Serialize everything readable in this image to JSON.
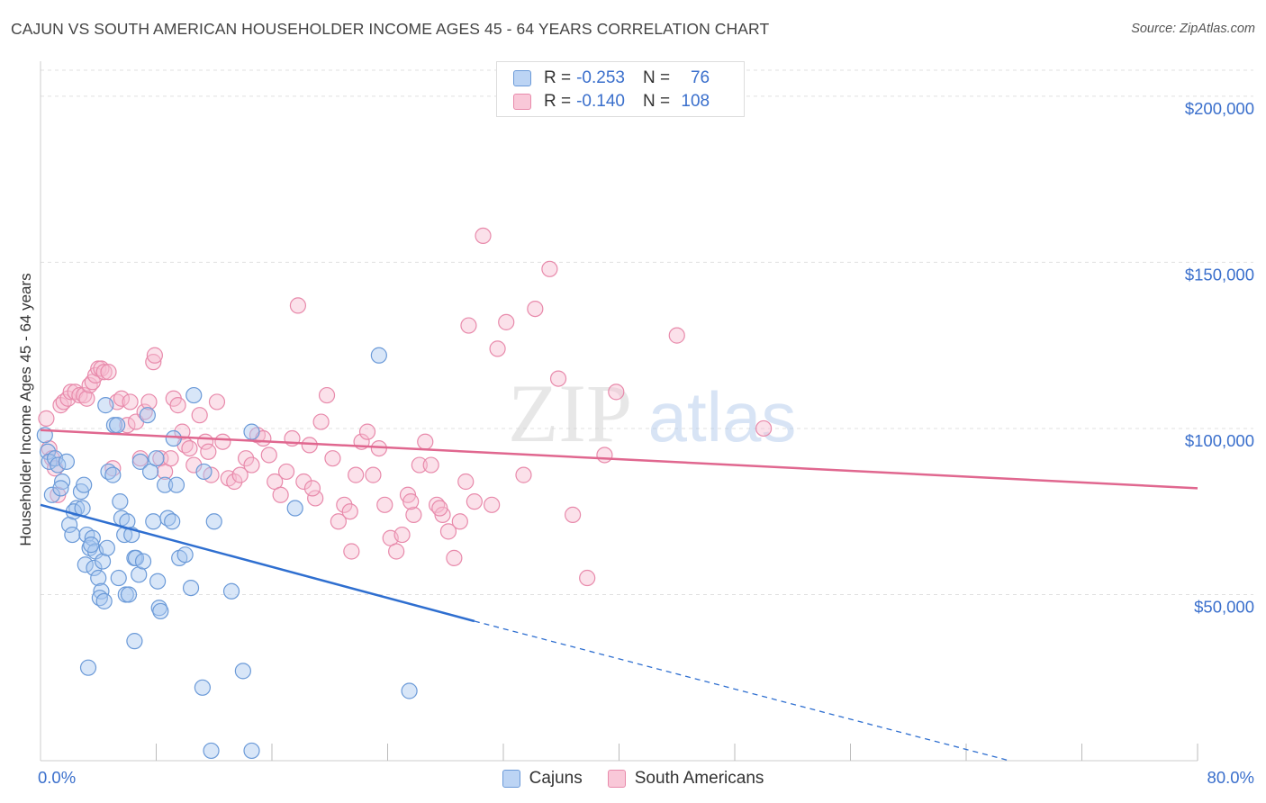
{
  "header": {
    "title": "CAJUN VS SOUTH AMERICAN HOUSEHOLDER INCOME AGES 45 - 64 YEARS CORRELATION CHART",
    "source": "Source: ZipAtlas.com"
  },
  "watermark": {
    "zip": "ZIP",
    "atlas": "atlas"
  },
  "legend_top": {
    "rows": [
      {
        "r_label": "R =",
        "r_value": "-0.253",
        "n_label": "N =",
        "n_value": "76"
      },
      {
        "r_label": "R =",
        "r_value": "-0.140",
        "n_label": "N =",
        "n_value": "108"
      }
    ]
  },
  "legend_bottom": {
    "items": [
      "Cajuns",
      "South Americans"
    ]
  },
  "chart_data": {
    "type": "scatter",
    "title": "CAJUN VS SOUTH AMERICAN HOUSEHOLDER INCOME AGES 45 - 64 YEARS CORRELATION CHART",
    "xlabel": "",
    "ylabel": "Householder Income Ages 45 - 64 years",
    "xlim": [
      0,
      80
    ],
    "ylim": [
      0,
      210000
    ],
    "x_tick_labels": [
      "0.0%",
      "80.0%"
    ],
    "y_ticks": [
      50000,
      100000,
      150000,
      200000
    ],
    "y_tick_labels": [
      "$50,000",
      "$100,000",
      "$150,000",
      "$200,000"
    ],
    "grid": true,
    "legend": "bottom",
    "colors": {
      "cajun_fill": "#a9c8f0",
      "cajun_stroke": "#6b9ad8",
      "cajun_line": "#2f6fd0",
      "south_fill": "#f7bcd0",
      "south_stroke": "#e88aab",
      "south_line": "#e0678f",
      "axis_text": "#3a6fcc",
      "grid": "#e0e0e0"
    },
    "series": [
      {
        "name": "Cajuns",
        "r": -0.253,
        "n": 76,
        "trend": {
          "x0": 0,
          "y0": 77000,
          "x1": 30,
          "y1": 42000,
          "dash_to_x": 67,
          "dash_to_y": 0
        },
        "points": [
          [
            0.3,
            98000
          ],
          [
            0.5,
            93000
          ],
          [
            0.6,
            90000
          ],
          [
            0.8,
            80000
          ],
          [
            1.0,
            91000
          ],
          [
            1.2,
            89000
          ],
          [
            1.5,
            84000
          ],
          [
            1.4,
            82000
          ],
          [
            1.8,
            90000
          ],
          [
            2.0,
            71000
          ],
          [
            2.2,
            68000
          ],
          [
            2.5,
            76000
          ],
          [
            2.3,
            75000
          ],
          [
            2.8,
            81000
          ],
          [
            3.0,
            83000
          ],
          [
            2.9,
            76000
          ],
          [
            3.2,
            68000
          ],
          [
            3.4,
            64000
          ],
          [
            3.1,
            59000
          ],
          [
            3.6,
            67000
          ],
          [
            3.8,
            63000
          ],
          [
            3.7,
            58000
          ],
          [
            3.5,
            65000
          ],
          [
            4.0,
            55000
          ],
          [
            4.2,
            51000
          ],
          [
            4.1,
            49000
          ],
          [
            4.4,
            48000
          ],
          [
            4.3,
            60000
          ],
          [
            4.6,
            64000
          ],
          [
            4.5,
            107000
          ],
          [
            4.7,
            87000
          ],
          [
            5.0,
            86000
          ],
          [
            5.1,
            101000
          ],
          [
            5.3,
            101000
          ],
          [
            5.5,
            78000
          ],
          [
            5.4,
            55000
          ],
          [
            5.6,
            73000
          ],
          [
            5.8,
            68000
          ],
          [
            5.9,
            50000
          ],
          [
            6.0,
            72000
          ],
          [
            6.1,
            50000
          ],
          [
            6.3,
            68000
          ],
          [
            6.5,
            61000
          ],
          [
            6.6,
            61000
          ],
          [
            6.9,
            90000
          ],
          [
            6.8,
            56000
          ],
          [
            7.1,
            60000
          ],
          [
            7.4,
            104000
          ],
          [
            7.6,
            87000
          ],
          [
            7.8,
            72000
          ],
          [
            8.0,
            91000
          ],
          [
            8.1,
            54000
          ],
          [
            8.2,
            46000
          ],
          [
            8.3,
            45000
          ],
          [
            8.6,
            83000
          ],
          [
            8.8,
            73000
          ],
          [
            9.1,
            72000
          ],
          [
            9.2,
            97000
          ],
          [
            9.4,
            83000
          ],
          [
            9.6,
            61000
          ],
          [
            10.0,
            62000
          ],
          [
            10.4,
            52000
          ],
          [
            10.6,
            110000
          ],
          [
            11.3,
            87000
          ],
          [
            12.0,
            72000
          ],
          [
            13.2,
            51000
          ],
          [
            14.0,
            27000
          ],
          [
            14.6,
            99000
          ],
          [
            17.6,
            76000
          ],
          [
            23.4,
            122000
          ],
          [
            25.5,
            21000
          ],
          [
            11.2,
            22000
          ],
          [
            6.5,
            36000
          ],
          [
            3.3,
            28000
          ],
          [
            11.8,
            3000
          ],
          [
            14.6,
            3000
          ]
        ]
      },
      {
        "name": "South Americans",
        "r": -0.14,
        "n": 108,
        "trend": {
          "x0": 0,
          "y0": 99500,
          "x1": 80,
          "y1": 82000
        },
        "points": [
          [
            0.4,
            103000
          ],
          [
            0.6,
            94000
          ],
          [
            0.8,
            91000
          ],
          [
            1.0,
            88000
          ],
          [
            1.2,
            80000
          ],
          [
            1.4,
            107000
          ],
          [
            1.6,
            108000
          ],
          [
            1.9,
            109000
          ],
          [
            2.1,
            111000
          ],
          [
            2.4,
            111000
          ],
          [
            2.7,
            110000
          ],
          [
            3.0,
            110000
          ],
          [
            3.2,
            109000
          ],
          [
            3.4,
            113000
          ],
          [
            3.6,
            114000
          ],
          [
            3.8,
            116000
          ],
          [
            4.0,
            118000
          ],
          [
            4.2,
            118000
          ],
          [
            4.4,
            117000
          ],
          [
            4.7,
            117000
          ],
          [
            5.0,
            88000
          ],
          [
            5.3,
            108000
          ],
          [
            5.6,
            109000
          ],
          [
            6.0,
            101000
          ],
          [
            6.2,
            108000
          ],
          [
            6.6,
            102000
          ],
          [
            6.9,
            91000
          ],
          [
            7.2,
            105000
          ],
          [
            7.5,
            108000
          ],
          [
            7.8,
            120000
          ],
          [
            7.9,
            122000
          ],
          [
            8.3,
            91000
          ],
          [
            8.6,
            87000
          ],
          [
            9.0,
            91000
          ],
          [
            9.2,
            109000
          ],
          [
            9.5,
            107000
          ],
          [
            9.8,
            99000
          ],
          [
            10.0,
            95000
          ],
          [
            10.3,
            94000
          ],
          [
            10.6,
            89000
          ],
          [
            11.0,
            104000
          ],
          [
            11.4,
            96000
          ],
          [
            11.8,
            86000
          ],
          [
            12.2,
            108000
          ],
          [
            12.6,
            96000
          ],
          [
            13.0,
            85000
          ],
          [
            13.4,
            84000
          ],
          [
            13.8,
            86000
          ],
          [
            14.2,
            91000
          ],
          [
            14.6,
            89000
          ],
          [
            15.0,
            98000
          ],
          [
            15.4,
            97000
          ],
          [
            15.8,
            92000
          ],
          [
            16.2,
            84000
          ],
          [
            16.6,
            80000
          ],
          [
            17.0,
            87000
          ],
          [
            17.4,
            97000
          ],
          [
            17.8,
            137000
          ],
          [
            18.2,
            84000
          ],
          [
            18.6,
            95000
          ],
          [
            19.0,
            79000
          ],
          [
            19.4,
            102000
          ],
          [
            19.8,
            110000
          ],
          [
            20.2,
            91000
          ],
          [
            20.6,
            72000
          ],
          [
            21.0,
            77000
          ],
          [
            21.4,
            75000
          ],
          [
            21.8,
            86000
          ],
          [
            22.2,
            96000
          ],
          [
            22.6,
            99000
          ],
          [
            23.0,
            86000
          ],
          [
            23.4,
            94000
          ],
          [
            23.8,
            77000
          ],
          [
            24.2,
            67000
          ],
          [
            24.6,
            63000
          ],
          [
            25.0,
            68000
          ],
          [
            25.4,
            80000
          ],
          [
            25.8,
            74000
          ],
          [
            26.2,
            89000
          ],
          [
            26.6,
            96000
          ],
          [
            27.0,
            89000
          ],
          [
            27.4,
            77000
          ],
          [
            27.8,
            74000
          ],
          [
            28.2,
            69000
          ],
          [
            28.6,
            61000
          ],
          [
            29.0,
            72000
          ],
          [
            29.4,
            84000
          ],
          [
            29.6,
            131000
          ],
          [
            30.0,
            78000
          ],
          [
            30.6,
            158000
          ],
          [
            31.2,
            77000
          ],
          [
            31.6,
            124000
          ],
          [
            32.2,
            132000
          ],
          [
            33.4,
            86000
          ],
          [
            34.2,
            136000
          ],
          [
            35.2,
            148000
          ],
          [
            35.8,
            115000
          ],
          [
            36.8,
            74000
          ],
          [
            37.8,
            55000
          ],
          [
            39.0,
            92000
          ],
          [
            39.8,
            111000
          ],
          [
            44.0,
            128000
          ],
          [
            50.0,
            100000
          ],
          [
            25.6,
            78000
          ],
          [
            18.8,
            82000
          ],
          [
            21.5,
            63000
          ],
          [
            27.6,
            76000
          ],
          [
            11.6,
            93000
          ]
        ]
      }
    ]
  }
}
